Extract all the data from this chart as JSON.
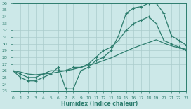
{
  "xlabel": "Humidex (Indice chaleur)",
  "bg_color": "#cce8e8",
  "grid_color": "#aacccc",
  "line_color": "#2d7d6e",
  "xlim": [
    0,
    23
  ],
  "ylim": [
    23,
    36
  ],
  "xticks": [
    0,
    1,
    2,
    3,
    4,
    5,
    6,
    7,
    8,
    9,
    10,
    11,
    12,
    13,
    14,
    15,
    16,
    17,
    18,
    19,
    20,
    21,
    22,
    23
  ],
  "yticks": [
    23,
    24,
    25,
    26,
    27,
    28,
    29,
    30,
    31,
    32,
    33,
    34,
    35,
    36
  ],
  "line1_x": [
    0,
    1,
    2,
    3,
    4,
    5,
    6,
    7,
    8,
    9,
    10,
    11,
    12,
    13,
    14,
    15,
    16,
    17,
    18,
    19,
    20,
    21,
    22,
    23
  ],
  "line1_y": [
    26,
    25,
    24.5,
    24.5,
    25,
    25.5,
    26.5,
    23.3,
    23.3,
    26,
    26.5,
    27.5,
    28,
    29,
    31.2,
    34.5,
    35.3,
    35.5,
    36,
    36,
    34.5,
    31.2,
    30.5,
    29.8
  ],
  "line2_x": [
    0,
    1,
    2,
    3,
    4,
    5,
    6,
    7,
    8,
    9,
    10,
    11,
    12,
    13,
    14,
    15,
    16,
    17,
    18,
    19,
    20,
    21,
    22,
    23
  ],
  "line2_y": [
    26,
    25.5,
    25,
    25,
    25.5,
    26,
    26,
    26,
    26.5,
    26.5,
    27,
    28,
    29,
    29.5,
    30.5,
    32,
    33,
    33.5,
    34,
    33,
    30.5,
    30,
    29.5,
    29
  ],
  "line3_x": [
    0,
    1,
    2,
    3,
    4,
    5,
    6,
    7,
    8,
    9,
    10,
    11,
    12,
    13,
    14,
    15,
    16,
    17,
    18,
    19,
    20,
    21,
    22,
    23
  ],
  "line3_y": [
    26,
    25.8,
    25.5,
    25.4,
    25.5,
    25.6,
    25.8,
    26.0,
    26.2,
    26.5,
    26.8,
    27.1,
    27.5,
    27.9,
    28.4,
    28.9,
    29.4,
    29.8,
    30.2,
    30.6,
    30.1,
    29.7,
    29.4,
    29.2
  ]
}
